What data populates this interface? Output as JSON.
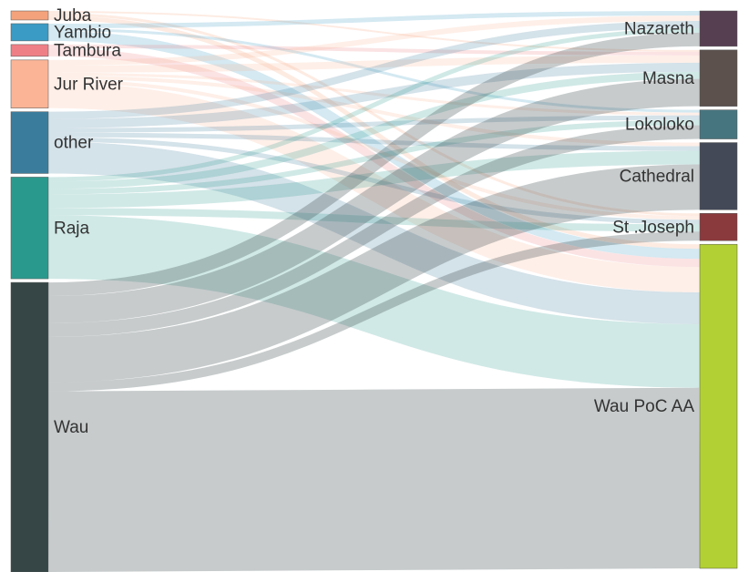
{
  "chart_data": {
    "type": "sankey",
    "nodes": [
      {
        "name": "Juba",
        "color": "#f4a27c",
        "column": "left"
      },
      {
        "name": "Yambio",
        "color": "#3a9bc4",
        "column": "left"
      },
      {
        "name": "Tambura",
        "color": "#ef7f86",
        "column": "left"
      },
      {
        "name": "Jur River",
        "color": "#fbb496",
        "column": "left"
      },
      {
        "name": "other",
        "color": "#3a7c9c",
        "column": "left"
      },
      {
        "name": "Raja",
        "color": "#2a998d",
        "column": "left"
      },
      {
        "name": "Wau",
        "color": "#364647",
        "column": "left"
      },
      {
        "name": "Nazareth",
        "color": "#573f52",
        "column": "right"
      },
      {
        "name": "Masna",
        "color": "#5c514d",
        "column": "right"
      },
      {
        "name": "Lokoloko",
        "color": "#47757f",
        "column": "right"
      },
      {
        "name": "Cathedral",
        "color": "#434957",
        "column": "right"
      },
      {
        "name": "St .Joseph",
        "color": "#8a3a3c",
        "column": "right"
      },
      {
        "name": "Wau PoC AA",
        "color": "#b2d033",
        "column": "right"
      }
    ],
    "links": [
      {
        "source": "Juba",
        "target": "Masna",
        "value": 2
      },
      {
        "source": "Juba",
        "target": "St .Joseph",
        "value": 3
      },
      {
        "source": "Juba",
        "target": "Wau PoC AA",
        "value": 5
      },
      {
        "source": "Yambio",
        "target": "Nazareth",
        "value": 5
      },
      {
        "source": "Yambio",
        "target": "Lokoloko",
        "value": 3
      },
      {
        "source": "Yambio",
        "target": "Wau PoC AA",
        "value": 11
      },
      {
        "source": "Tambura",
        "target": "Masna",
        "value": 4
      },
      {
        "source": "Tambura",
        "target": "Wau PoC AA",
        "value": 9
      },
      {
        "source": "Jur River",
        "target": "Nazareth",
        "value": 6
      },
      {
        "source": "Jur River",
        "target": "Masna",
        "value": 8
      },
      {
        "source": "Jur River",
        "target": "Lokoloko",
        "value": 3
      },
      {
        "source": "Jur River",
        "target": "Cathedral",
        "value": 4
      },
      {
        "source": "Jur River",
        "target": "St .Joseph",
        "value": 4
      },
      {
        "source": "Jur River",
        "target": "Wau PoC AA",
        "value": 28
      },
      {
        "source": "other",
        "target": "Nazareth",
        "value": 8
      },
      {
        "source": "other",
        "target": "Masna",
        "value": 10
      },
      {
        "source": "other",
        "target": "Lokoloko",
        "value": 5
      },
      {
        "source": "other",
        "target": "Cathedral",
        "value": 5
      },
      {
        "source": "other",
        "target": "St .Joseph",
        "value": 5
      },
      {
        "source": "other",
        "target": "Wau PoC AA",
        "value": 35
      },
      {
        "source": "Raja",
        "target": "Nazareth",
        "value": 5
      },
      {
        "source": "Raja",
        "target": "Masna",
        "value": 8
      },
      {
        "source": "Raja",
        "target": "Lokoloko",
        "value": 6
      },
      {
        "source": "Raja",
        "target": "Cathedral",
        "value": 15
      },
      {
        "source": "Raja",
        "target": "St .Joseph",
        "value": 8
      },
      {
        "source": "Raja",
        "target": "Wau PoC AA",
        "value": 70
      },
      {
        "source": "Wau",
        "target": "Nazareth",
        "value": 15
      },
      {
        "source": "Wau",
        "target": "Masna",
        "value": 30
      },
      {
        "source": "Wau",
        "target": "Lokoloko",
        "value": 15
      },
      {
        "source": "Wau",
        "target": "Cathedral",
        "value": 50
      },
      {
        "source": "Wau",
        "target": "St .Joseph",
        "value": 10
      },
      {
        "source": "Wau",
        "target": "Wau PoC AA",
        "value": 199
      }
    ]
  }
}
